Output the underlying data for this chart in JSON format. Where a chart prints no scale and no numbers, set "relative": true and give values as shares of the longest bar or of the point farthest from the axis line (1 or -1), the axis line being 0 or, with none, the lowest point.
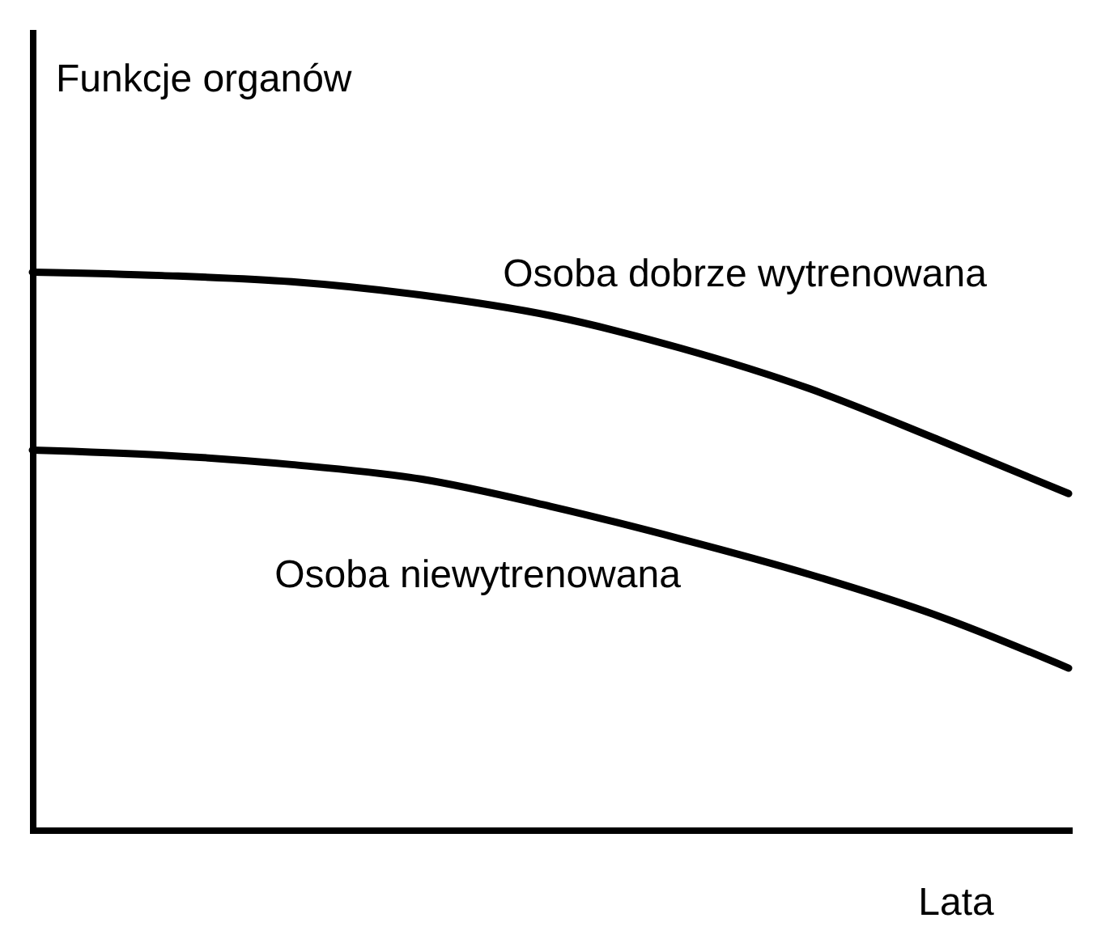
{
  "chart_data": {
    "type": "line",
    "relative": true,
    "xlabel": "Lata",
    "ylabel": "Funkcje organów",
    "categories": [
      null,
      null,
      null,
      null,
      null,
      null,
      null,
      null,
      null
    ],
    "series": [
      {
        "name": "Osoba dobrze wytrenowana",
        "color": "#000000",
        "values": [
          1,
          0.994,
          0.983,
          0.959,
          0.922,
          0.864,
          0.791,
          0.699,
          0.603
        ]
      },
      {
        "name": "Osoba niewytrenowana",
        "color": "#000000",
        "values": [
          0.681,
          0.672,
          0.655,
          0.629,
          0.58,
          0.522,
          0.458,
          0.383,
          0.29
        ]
      }
    ],
    "legend": false,
    "marker": "none",
    "line_style": "solid"
  }
}
